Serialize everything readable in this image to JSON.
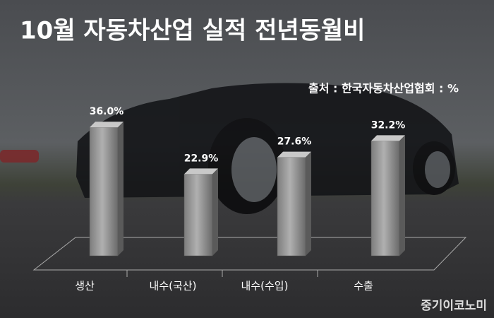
{
  "chart_data": {
    "type": "bar",
    "title": "10월 자동차산업 실적 전년동월비",
    "subtitle": "출처 : 한국자동차산업협회 : %",
    "credit": "중기이코노미",
    "categories": [
      "생산",
      "내수(국산)",
      "내수(수입)",
      "수출"
    ],
    "values": [
      36.0,
      22.9,
      27.6,
      32.2
    ],
    "value_labels": [
      "36.0%",
      "22.9%",
      "27.6%",
      "32.2%"
    ],
    "color": "#9a9a9a"
  }
}
